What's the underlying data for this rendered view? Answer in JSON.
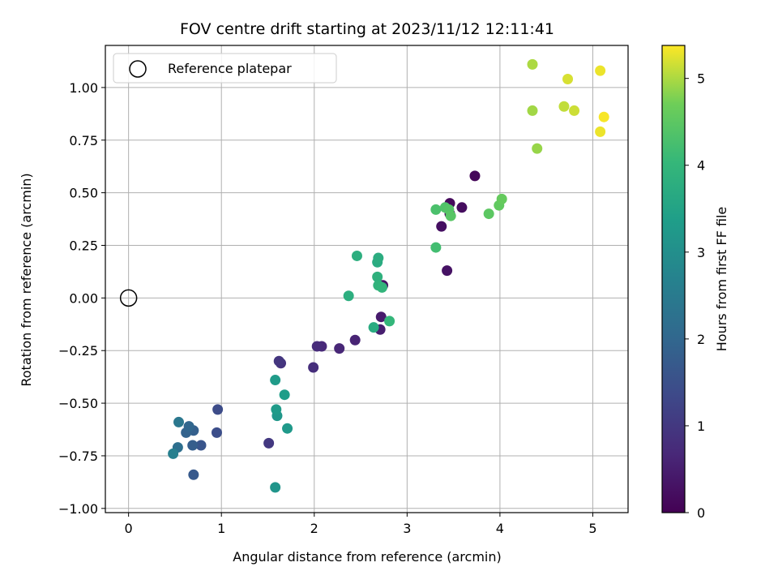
{
  "chart_data": {
    "type": "scatter",
    "title": "FOV centre drift starting at 2023/11/12 12:11:41",
    "xlabel": "Angular distance from reference (arcmin)",
    "ylabel": "Rotation from reference (arcmin)",
    "xlim": [
      -0.25,
      5.38
    ],
    "ylim": [
      -1.02,
      1.2
    ],
    "xticks": [
      0,
      1,
      2,
      3,
      4,
      5
    ],
    "xtick_labels": [
      "0",
      "1",
      "2",
      "3",
      "4",
      "5"
    ],
    "yticks": [
      -1.0,
      -0.75,
      -0.5,
      -0.25,
      0.0,
      0.25,
      0.5,
      0.75,
      1.0
    ],
    "ytick_labels": [
      "−1.00",
      "−0.75",
      "−0.50",
      "−0.25",
      "0.00",
      "0.25",
      "0.50",
      "0.75",
      "1.00"
    ],
    "grid": true,
    "colormap": "viridis",
    "colorbar": {
      "label": "Hours from first FF file",
      "range": [
        0,
        5.38
      ],
      "ticks": [
        0,
        1,
        2,
        3,
        4,
        5
      ],
      "tick_labels": [
        "0",
        "1",
        "2",
        "3",
        "4",
        "5"
      ]
    },
    "reference_point": {
      "x": 0,
      "y": 0,
      "legend": "Reference platepar"
    },
    "legend_position": "upper-left",
    "points": [
      {
        "x": 3.73,
        "y": 0.58,
        "c": 0.1
      },
      {
        "x": 3.46,
        "y": 0.45,
        "c": 0.15
      },
      {
        "x": 3.59,
        "y": 0.43,
        "c": 0.2
      },
      {
        "x": 3.46,
        "y": 0.4,
        "c": 0.2
      },
      {
        "x": 3.37,
        "y": 0.34,
        "c": 0.25
      },
      {
        "x": 3.43,
        "y": 0.13,
        "c": 0.3
      },
      {
        "x": 2.74,
        "y": 0.06,
        "c": 0.3
      },
      {
        "x": 2.72,
        "y": -0.09,
        "c": 0.45
      },
      {
        "x": 2.71,
        "y": -0.15,
        "c": 0.5
      },
      {
        "x": 2.44,
        "y": -0.2,
        "c": 0.6
      },
      {
        "x": 2.27,
        "y": -0.24,
        "c": 0.65
      },
      {
        "x": 2.08,
        "y": -0.23,
        "c": 0.7
      },
      {
        "x": 2.03,
        "y": -0.23,
        "c": 0.75
      },
      {
        "x": 1.99,
        "y": -0.33,
        "c": 0.8
      },
      {
        "x": 1.64,
        "y": -0.31,
        "c": 0.9
      },
      {
        "x": 1.62,
        "y": -0.3,
        "c": 0.95
      },
      {
        "x": 1.51,
        "y": -0.69,
        "c": 1.0
      },
      {
        "x": 0.96,
        "y": -0.53,
        "c": 1.4
      },
      {
        "x": 0.95,
        "y": -0.64,
        "c": 1.45
      },
      {
        "x": 0.78,
        "y": -0.7,
        "c": 1.6
      },
      {
        "x": 0.7,
        "y": -0.84,
        "c": 1.7
      },
      {
        "x": 0.69,
        "y": -0.7,
        "c": 1.8
      },
      {
        "x": 0.7,
        "y": -0.63,
        "c": 1.85
      },
      {
        "x": 0.62,
        "y": -0.64,
        "c": 1.9
      },
      {
        "x": 0.65,
        "y": -0.61,
        "c": 2.0
      },
      {
        "x": 0.53,
        "y": -0.71,
        "c": 2.2
      },
      {
        "x": 0.54,
        "y": -0.59,
        "c": 2.4
      },
      {
        "x": 0.48,
        "y": -0.74,
        "c": 2.6
      },
      {
        "x": 1.58,
        "y": -0.9,
        "c": 3.15
      },
      {
        "x": 1.71,
        "y": -0.62,
        "c": 3.25
      },
      {
        "x": 1.6,
        "y": -0.56,
        "c": 3.2
      },
      {
        "x": 1.59,
        "y": -0.53,
        "c": 3.3
      },
      {
        "x": 1.68,
        "y": -0.46,
        "c": 3.35
      },
      {
        "x": 1.58,
        "y": -0.39,
        "c": 3.3
      },
      {
        "x": 2.64,
        "y": -0.14,
        "c": 3.7
      },
      {
        "x": 2.37,
        "y": 0.01,
        "c": 3.8
      },
      {
        "x": 2.68,
        "y": 0.1,
        "c": 3.85
      },
      {
        "x": 2.68,
        "y": 0.17,
        "c": 3.7
      },
      {
        "x": 2.69,
        "y": 0.19,
        "c": 3.75
      },
      {
        "x": 2.46,
        "y": 0.2,
        "c": 3.8
      },
      {
        "x": 2.69,
        "y": 0.06,
        "c": 3.9
      },
      {
        "x": 2.73,
        "y": 0.05,
        "c": 3.95
      },
      {
        "x": 2.81,
        "y": -0.11,
        "c": 4.0
      },
      {
        "x": 3.31,
        "y": 0.24,
        "c": 4.2
      },
      {
        "x": 3.31,
        "y": 0.42,
        "c": 4.3
      },
      {
        "x": 3.41,
        "y": 0.43,
        "c": 4.35
      },
      {
        "x": 3.45,
        "y": 0.42,
        "c": 4.4
      },
      {
        "x": 3.47,
        "y": 0.39,
        "c": 4.45
      },
      {
        "x": 3.88,
        "y": 0.4,
        "c": 4.5
      },
      {
        "x": 3.99,
        "y": 0.44,
        "c": 4.55
      },
      {
        "x": 4.02,
        "y": 0.47,
        "c": 4.6
      },
      {
        "x": 4.4,
        "y": 0.71,
        "c": 4.9
      },
      {
        "x": 4.35,
        "y": 0.89,
        "c": 4.95
      },
      {
        "x": 4.35,
        "y": 1.11,
        "c": 5.0
      },
      {
        "x": 4.69,
        "y": 0.91,
        "c": 5.1
      },
      {
        "x": 4.8,
        "y": 0.89,
        "c": 5.15
      },
      {
        "x": 4.73,
        "y": 1.04,
        "c": 5.2
      },
      {
        "x": 5.08,
        "y": 1.08,
        "c": 5.3
      },
      {
        "x": 5.08,
        "y": 0.79,
        "c": 5.3
      },
      {
        "x": 5.12,
        "y": 0.86,
        "c": 5.35
      }
    ]
  }
}
